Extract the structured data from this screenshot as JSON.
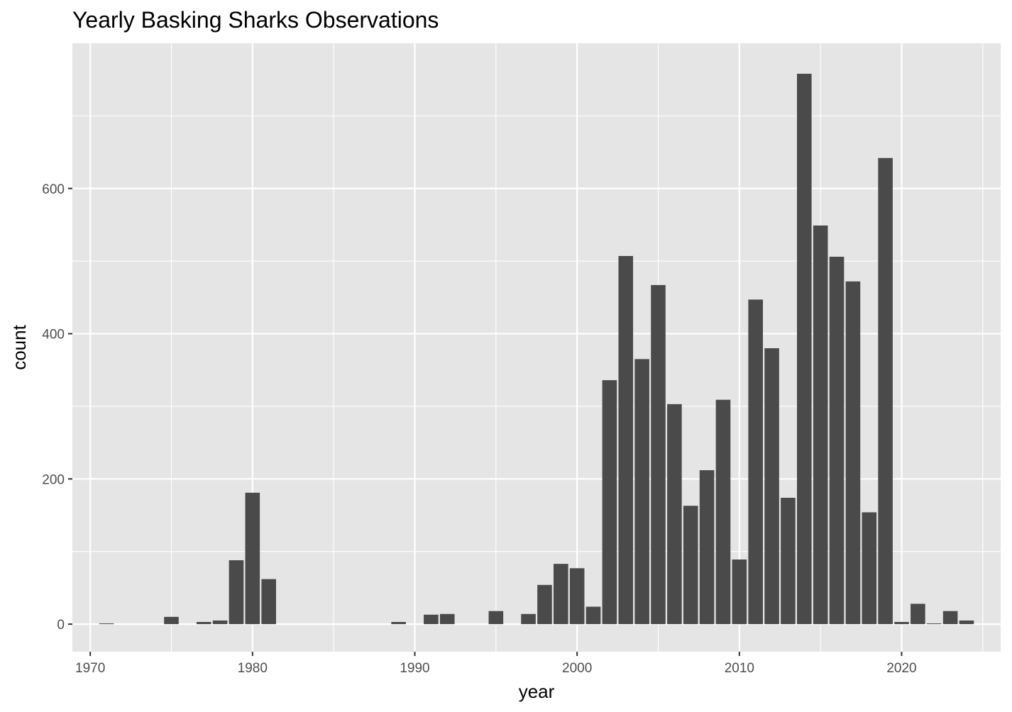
{
  "chart_data": {
    "type": "bar",
    "title": "Yearly Basking Sharks Observations",
    "xlabel": "year",
    "ylabel": "count",
    "x_ticks": [
      1970,
      1980,
      1990,
      2000,
      2010,
      2020
    ],
    "y_ticks": [
      0,
      200,
      400,
      600
    ],
    "xlim": [
      1968.9,
      2026.1
    ],
    "ylim": [
      -38,
      800
    ],
    "grid": true,
    "legend": "none",
    "colors": {
      "panel": "#e5e5e5",
      "grid": "#ffffff",
      "bar": "#4a4a4a",
      "tick_text": "#4d4d4d"
    },
    "x": [
      1971,
      1975,
      1977,
      1978,
      1979,
      1980,
      1981,
      1989,
      1991,
      1992,
      1995,
      1997,
      1998,
      1999,
      2000,
      2001,
      2002,
      2003,
      2004,
      2005,
      2006,
      2007,
      2008,
      2009,
      2010,
      2011,
      2012,
      2013,
      2014,
      2015,
      2016,
      2017,
      2018,
      2019,
      2020,
      2021,
      2022,
      2023,
      2024
    ],
    "values": [
      1,
      10,
      3,
      5,
      88,
      181,
      62,
      3,
      13,
      14,
      18,
      14,
      54,
      83,
      77,
      24,
      336,
      507,
      365,
      467,
      303,
      163,
      212,
      309,
      89,
      447,
      380,
      174,
      758,
      549,
      506,
      472,
      154,
      642,
      3,
      28,
      1,
      18,
      5
    ]
  }
}
